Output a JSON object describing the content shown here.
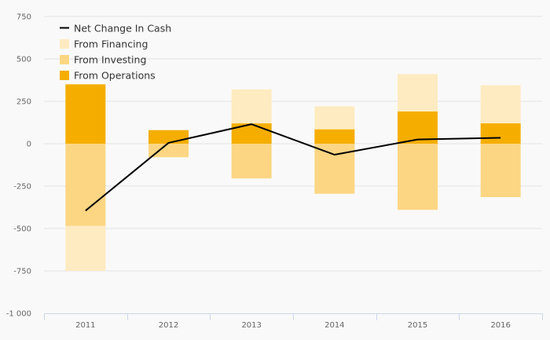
{
  "chart_data": {
    "type": "bar",
    "stacked": true,
    "categories": [
      "2011",
      "2012",
      "2013",
      "2014",
      "2015",
      "2016"
    ],
    "ylim": [
      -1000,
      750
    ],
    "yticks": [
      750,
      500,
      250,
      0,
      -250,
      -500,
      -750,
      -1000
    ],
    "ytick_labels": [
      "750",
      "500",
      "250",
      "0",
      "-250",
      "-500",
      "-750",
      "-1 000"
    ],
    "grid": true,
    "legend_position": "top-left",
    "series": [
      {
        "name": "From Operations",
        "kind": "bar",
        "color": "#f5ae00",
        "values": [
          350,
          80,
          120,
          85,
          190,
          120
        ]
      },
      {
        "name": "From Investing",
        "kind": "bar",
        "color": "#fcd683",
        "values": [
          -485,
          -80,
          -205,
          -295,
          -390,
          -315
        ]
      },
      {
        "name": "From Financing",
        "kind": "bar",
        "color": "#ffebc1",
        "values": [
          -265,
          0,
          200,
          135,
          220,
          225
        ]
      },
      {
        "name": "Net Change In Cash",
        "kind": "line",
        "color": "#000000",
        "values": [
          -395,
          5,
          115,
          -65,
          25,
          35
        ]
      }
    ]
  }
}
